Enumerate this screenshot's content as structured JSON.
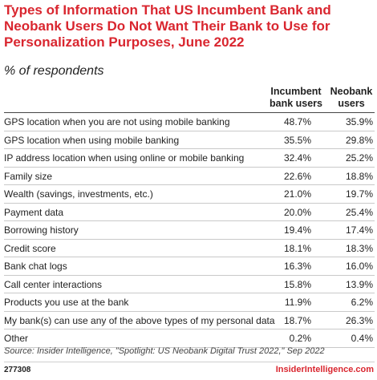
{
  "chart_data": {
    "type": "table",
    "title": "Types of Information That US Incumbent Bank and Neobank Users Do Not Want Their Bank to Use for Personalization Purposes, June 2022",
    "subtitle": "% of respondents",
    "columns": [
      "Incumbent bank users",
      "Neobank users"
    ],
    "rows": [
      {
        "label": "GPS location when you are not using mobile banking",
        "incumbent": "48.7%",
        "neobank": "35.9%"
      },
      {
        "label": "GPS location when using mobile banking",
        "incumbent": "35.5%",
        "neobank": "29.8%"
      },
      {
        "label": "IP address location when using online or mobile banking",
        "incumbent": "32.4%",
        "neobank": "25.2%"
      },
      {
        "label": "Family size",
        "incumbent": "22.6%",
        "neobank": "18.8%"
      },
      {
        "label": "Wealth (savings, investments, etc.)",
        "incumbent": "21.0%",
        "neobank": "19.7%"
      },
      {
        "label": "Payment data",
        "incumbent": "20.0%",
        "neobank": "25.4%"
      },
      {
        "label": "Borrowing history",
        "incumbent": "19.4%",
        "neobank": "17.4%"
      },
      {
        "label": "Credit score",
        "incumbent": "18.1%",
        "neobank": "18.3%"
      },
      {
        "label": "Bank chat logs",
        "incumbent": "16.3%",
        "neobank": "16.0%"
      },
      {
        "label": "Call center interactions",
        "incumbent": "15.8%",
        "neobank": "13.9%"
      },
      {
        "label": "Products you use at the bank",
        "incumbent": "11.9%",
        "neobank": "6.2%"
      },
      {
        "label": "My bank(s) can use any of the above types of my personal data",
        "incumbent": "18.7%",
        "neobank": "26.3%"
      },
      {
        "label": "Other",
        "incumbent": "0.2%",
        "neobank": "0.4%"
      }
    ],
    "source": "Source: Insider Intelligence, \"Spotlight: US Neobank Digital Trust 2022,\" Sep 2022",
    "chart_id": "277308",
    "brand": "InsiderIntelligence.com"
  },
  "colors": {
    "title": "#d9262f",
    "brand": "#d9262f",
    "text": "#222222"
  }
}
